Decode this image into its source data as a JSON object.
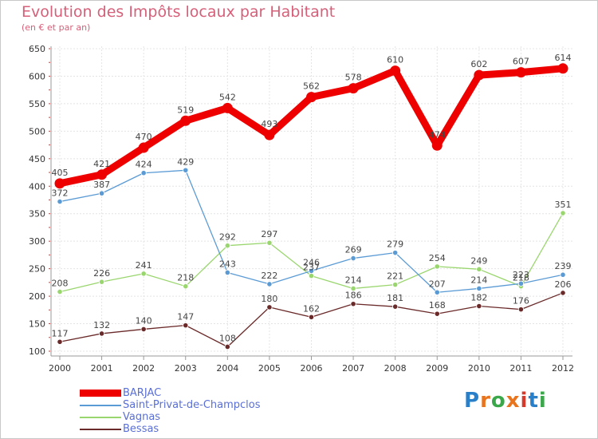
{
  "header": {
    "title": "Evolution des Impôts locaux par Habitant",
    "subtitle": "(en € et par an)"
  },
  "logo": {
    "text": "Proxiti",
    "colors": [
      "#2a7fc9",
      "#e8741e",
      "#3aa84a",
      "#e8741e",
      "#d63a2a",
      "#2a7fc9",
      "#3aa84a"
    ]
  },
  "chart_data": {
    "type": "line",
    "x": [
      "2000",
      "2001",
      "2002",
      "2003",
      "2004",
      "2005",
      "2006",
      "2007",
      "2008",
      "2009",
      "2010",
      "2011",
      "2012"
    ],
    "ylim": [
      100,
      650
    ],
    "yticks": [
      100,
      150,
      200,
      250,
      300,
      350,
      400,
      450,
      500,
      550,
      600,
      650
    ],
    "grid": true,
    "legend": "bottom-left",
    "series": [
      {
        "name": "BARJAC",
        "color": "#ee0000",
        "values": [
          405,
          421,
          470,
          519,
          542,
          493,
          562,
          578,
          610,
          474,
          602,
          607,
          614
        ]
      },
      {
        "name": "Saint-Privat-de-Champclos",
        "color": "#5b9bd5",
        "values": [
          372,
          387,
          424,
          429,
          243,
          222,
          246,
          269,
          279,
          207,
          214,
          223,
          239
        ]
      },
      {
        "name": "Vagnas",
        "color": "#9ad66e",
        "values": [
          208,
          226,
          241,
          218,
          292,
          297,
          237,
          214,
          221,
          254,
          249,
          218,
          351
        ]
      },
      {
        "name": "Bessas",
        "color": "#6b2a2a",
        "values": [
          117,
          132,
          140,
          147,
          108,
          180,
          162,
          186,
          181,
          168,
          182,
          176,
          206
        ]
      }
    ]
  }
}
